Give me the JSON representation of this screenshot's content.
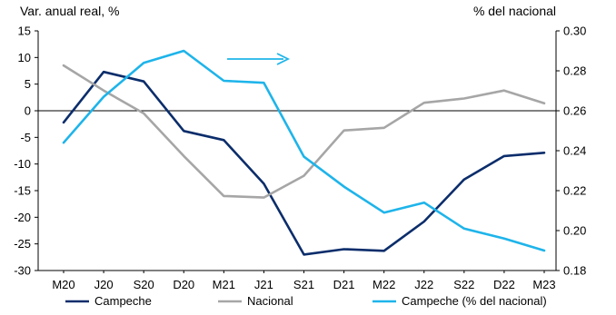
{
  "chart_data": {
    "type": "line",
    "categories": [
      "M20",
      "J20",
      "S20",
      "D20",
      "M21",
      "J21",
      "S21",
      "D21",
      "M22",
      "J22",
      "S22",
      "D22",
      "M23"
    ],
    "ylabel_left": "Var. anual real, %",
    "ylabel_right": "% del nacional",
    "ylim_left": [
      -30,
      15
    ],
    "ylim_right": [
      0.18,
      0.3
    ],
    "yticks_left": [
      "15",
      "10",
      "5",
      "0",
      "-5",
      "-10",
      "-15",
      "-20",
      "-25",
      "-30"
    ],
    "yticks_right": [
      "0.30",
      "0.28",
      "0.26",
      "0.24",
      "0.22",
      "0.20",
      "0.18"
    ],
    "series": [
      {
        "name": "Campeche",
        "axis": "left",
        "color": "#0b2d6b",
        "values": [
          -2.2,
          7.3,
          5.5,
          -3.8,
          -5.5,
          -13.7,
          -27.0,
          -26.0,
          -26.3,
          -20.8,
          -12.9,
          -8.5,
          -7.9
        ]
      },
      {
        "name": "Nacional",
        "axis": "left",
        "color": "#a6a6a6",
        "values": [
          8.5,
          3.8,
          -0.5,
          -8.5,
          -16.0,
          -16.3,
          -12.2,
          -3.7,
          -3.2,
          1.5,
          2.3,
          3.8,
          1.4
        ]
      },
      {
        "name": "Campeche (% del nacional)",
        "axis": "right",
        "color": "#1eb4ea",
        "values": [
          0.244,
          0.267,
          0.284,
          0.29,
          0.275,
          0.274,
          0.237,
          0.222,
          0.209,
          0.214,
          0.201,
          0.196,
          0.19
        ]
      }
    ],
    "annotation": "arrow pointing to right axis",
    "grid": false,
    "legend_position": "bottom"
  }
}
